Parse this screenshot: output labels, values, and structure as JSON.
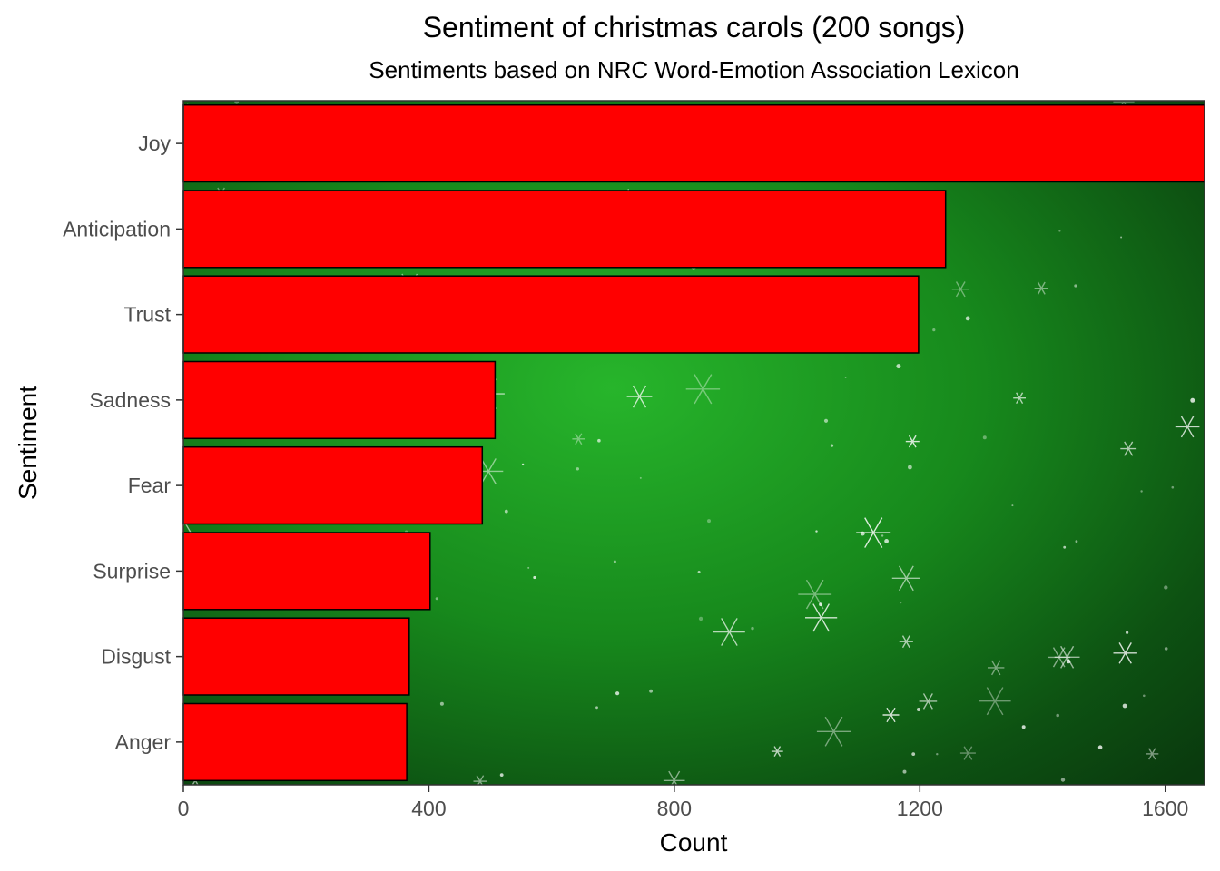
{
  "chart_data": {
    "type": "bar",
    "orientation": "horizontal",
    "title": "Sentiment of christmas carols (200 songs)",
    "subtitle": "Sentiments based on NRC Word-Emotion Association Lexicon",
    "xlabel": "Count",
    "ylabel": "Sentiment",
    "categories": [
      "Joy",
      "Anticipation",
      "Trust",
      "Sadness",
      "Fear",
      "Surprise",
      "Disgust",
      "Anger"
    ],
    "values": [
      1676,
      1242,
      1198,
      508,
      487,
      402,
      368,
      364
    ],
    "xlim": [
      0,
      1664
    ],
    "xticks": [
      "0",
      "400",
      "800",
      "1200",
      "1600"
    ],
    "xtick_values": [
      0,
      400,
      800,
      1200,
      1600
    ],
    "bar_color": "#ff0000",
    "bar_outline": "#000000",
    "background": "green snowflake pattern",
    "grid": false,
    "legend": "none"
  }
}
